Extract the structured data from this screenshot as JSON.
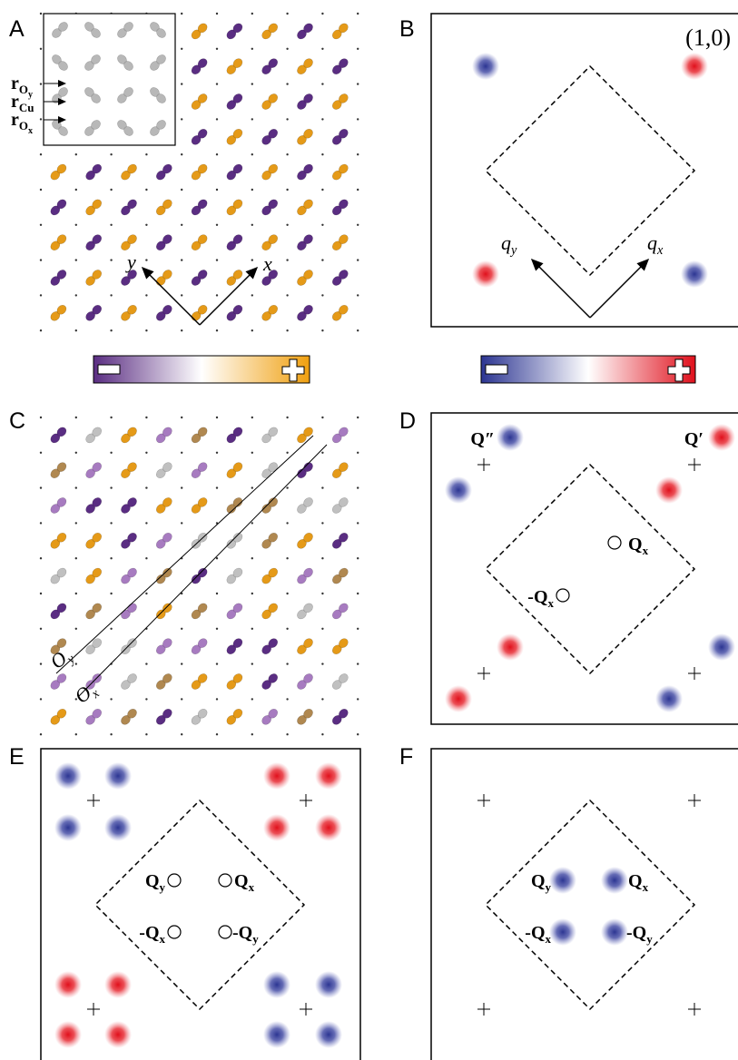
{
  "panels": [
    {
      "label": "A",
      "inset": [
        {
          "base": "r",
          "sub": "O",
          "subsub": "y"
        },
        {
          "base": "r",
          "sub": "Cu"
        },
        {
          "base": "r",
          "sub": "O",
          "subsub": "x"
        }
      ],
      "axis_y": "y",
      "axis_x": "x"
    },
    {
      "label": "B",
      "order": "(1,0)",
      "q_y": {
        "base": "q",
        "sub": "y"
      },
      "q_x": {
        "base": "q",
        "sub": "x"
      }
    },
    {
      "label": "C",
      "lines": [
        {
          "base": "O",
          "sub": "y"
        },
        {
          "base": "O",
          "sub": "x"
        }
      ]
    },
    {
      "label": "D",
      "peaks": [
        "Q″",
        "Q′"
      ],
      "vectors": [
        {
          "base": "Q",
          "sub": "x"
        },
        {
          "base": "-Q",
          "sub": "x"
        }
      ]
    },
    {
      "label": "E",
      "vectors": [
        {
          "base": "Q",
          "sub": "y"
        },
        {
          "base": "Q",
          "sub": "x"
        },
        {
          "base": "-Q",
          "sub": "x"
        },
        {
          "base": "-Q",
          "sub": "y"
        }
      ]
    },
    {
      "label": "F",
      "vectors": [
        {
          "base": "Q",
          "sub": "y"
        },
        {
          "base": "Q",
          "sub": "x"
        },
        {
          "base": "-Q",
          "sub": "x"
        },
        {
          "base": "-Q",
          "sub": "y"
        }
      ]
    }
  ]
}
